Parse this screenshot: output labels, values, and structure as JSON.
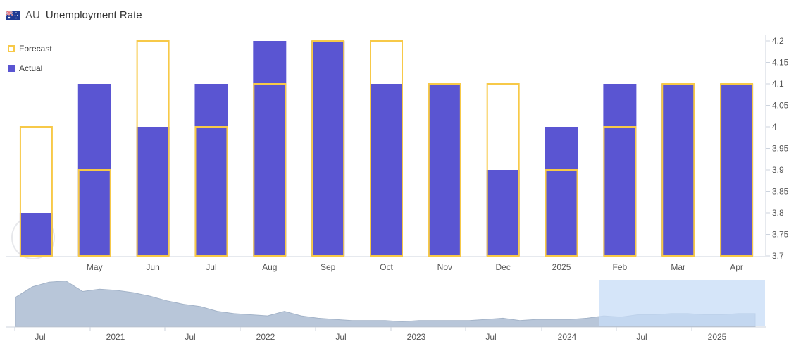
{
  "header": {
    "country": "AU",
    "title": "Unemployment Rate",
    "flag_icon": "australia-flag-icon"
  },
  "legend": [
    {
      "label": "Forecast",
      "kind": "forecast"
    },
    {
      "label": "Actual",
      "kind": "actual"
    }
  ],
  "colors": {
    "actual": "#5a55d2",
    "forecast": "#f7c948",
    "navigator_area": "#b8c6d9",
    "navigator_selection": "#c7dcf7"
  },
  "chart_data": [
    {
      "type": "bar",
      "title": "Unemployment Rate",
      "categories": [
        "",
        "May",
        "Jun",
        "Jul",
        "Aug",
        "Sep",
        "Oct",
        "Nov",
        "Dec",
        "2025",
        "Feb",
        "Mar",
        "Apr"
      ],
      "series": [
        {
          "name": "Forecast",
          "values": [
            4.0,
            3.9,
            4.2,
            4.0,
            4.1,
            4.2,
            4.2,
            4.1,
            4.1,
            3.9,
            4.0,
            4.1,
            4.1
          ]
        },
        {
          "name": "Actual",
          "values": [
            3.8,
            4.1,
            4.0,
            4.1,
            4.2,
            4.2,
            4.1,
            4.1,
            3.9,
            4.0,
            4.1,
            4.1,
            4.1
          ]
        }
      ],
      "ylim": [
        3.7,
        4.2
      ],
      "yticks": [
        "4.2",
        "4.15",
        "4.1",
        "4.05",
        "4",
        "3.95",
        "3.9",
        "3.85",
        "3.8",
        "3.75",
        "3.7"
      ],
      "ytick_values": [
        4.2,
        4.15,
        4.1,
        4.05,
        4.0,
        3.95,
        3.9,
        3.85,
        3.8,
        3.75,
        3.7
      ],
      "legend": "top-left",
      "grid": false
    },
    {
      "type": "area",
      "x_labels": [
        "Jul",
        "2021",
        "Jul",
        "2022",
        "Jul",
        "2023",
        "Jul",
        "2024",
        "Jul",
        "2025"
      ],
      "values": [
        5.5,
        6.4,
        6.8,
        6.9,
        6.0,
        6.2,
        6.1,
        5.9,
        5.6,
        5.2,
        4.9,
        4.7,
        4.3,
        4.1,
        4.0,
        3.9,
        4.3,
        3.9,
        3.7,
        3.6,
        3.5,
        3.5,
        3.5,
        3.4,
        3.5,
        3.5,
        3.5,
        3.5,
        3.6,
        3.7,
        3.5,
        3.6,
        3.6,
        3.6,
        3.7,
        3.9,
        3.8,
        4.0,
        4.0,
        4.1,
        4.1,
        4.0,
        4.0,
        4.1,
        4.1
      ],
      "selection_range": [
        "2024",
        "2025"
      ]
    }
  ]
}
